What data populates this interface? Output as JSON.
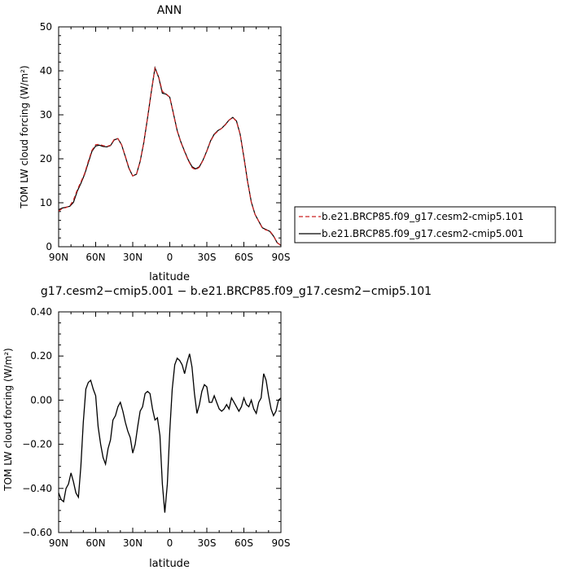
{
  "chart_data": [
    {
      "type": "line",
      "title": "ANN",
      "xlabel": "",
      "ylabel": "TOM LW cloud forcing (W/m²)",
      "x_ticks": [
        "90N",
        "60N",
        "30N",
        "0",
        "30S",
        "60S",
        "90S"
      ],
      "y_ticks": [
        "0",
        "10",
        "20",
        "30",
        "40",
        "50"
      ],
      "xlim": [
        90,
        -90
      ],
      "ylim": [
        0,
        50
      ],
      "legend_position": "right",
      "series": [
        {
          "name": "b.e21.BRCP85.f09_g17.cesm2-cmip5.101",
          "color": "#cc2222",
          "dash": "dashed",
          "x": [
            90,
            87,
            84,
            81,
            78,
            75,
            72,
            69,
            66,
            63,
            60,
            57,
            54,
            51,
            48,
            45,
            42,
            39,
            36,
            33,
            30,
            27,
            24,
            21,
            18,
            15,
            12,
            9,
            6,
            3,
            0,
            -3,
            -6,
            -9,
            -12,
            -15,
            -18,
            -21,
            -24,
            -27,
            -30,
            -33,
            -36,
            -39,
            -42,
            -45,
            -48,
            -51,
            -54,
            -57,
            -60,
            -63,
            -66,
            -69,
            -72,
            -75,
            -78,
            -81,
            -84,
            -87,
            -90
          ],
          "values": [
            8.1,
            8.7,
            8.9,
            9.3,
            10.6,
            12.9,
            14.7,
            16.6,
            19.4,
            21.9,
            23.2,
            23.3,
            23.0,
            22.8,
            23.1,
            24.4,
            24.6,
            23.2,
            20.6,
            17.9,
            16.1,
            16.5,
            19.4,
            23.8,
            29.4,
            35.2,
            40.6,
            38.6,
            35.3,
            34.8,
            34.0,
            30.1,
            26.3,
            23.7,
            21.6,
            19.6,
            18.0,
            17.5,
            18.1,
            19.7,
            21.7,
            24.0,
            25.5,
            26.3,
            26.9,
            27.7,
            28.8,
            29.4,
            28.5,
            25.6,
            20.3,
            14.8,
            10.1,
            7.4,
            5.8,
            4.2,
            3.8,
            3.6,
            2.5,
            0.9,
            0.3
          ]
        },
        {
          "name": "b.e21.BRCP85.f09_g17.cesm2-cmip5.001",
          "color": "#000000",
          "dash": "solid",
          "x": [
            90,
            87,
            84,
            81,
            78,
            75,
            72,
            69,
            66,
            63,
            60,
            57,
            54,
            51,
            48,
            45,
            42,
            39,
            36,
            33,
            30,
            27,
            24,
            21,
            18,
            15,
            12,
            9,
            6,
            3,
            0,
            -3,
            -6,
            -9,
            -12,
            -15,
            -18,
            -21,
            -24,
            -27,
            -30,
            -33,
            -36,
            -39,
            -42,
            -45,
            -48,
            -51,
            -54,
            -57,
            -60,
            -63,
            -66,
            -69,
            -72,
            -75,
            -78,
            -81,
            -84,
            -87,
            -90
          ],
          "values": [
            8.4,
            8.8,
            9.0,
            9.2,
            10.1,
            12.6,
            14.4,
            16.4,
            19.1,
            21.7,
            22.9,
            23.1,
            22.8,
            22.7,
            23.0,
            24.3,
            24.6,
            23.2,
            20.5,
            17.8,
            16.1,
            16.5,
            19.4,
            23.8,
            29.3,
            35.2,
            40.7,
            38.5,
            34.9,
            34.7,
            34.0,
            30.2,
            26.4,
            23.8,
            21.7,
            19.7,
            18.2,
            17.7,
            18.2,
            19.8,
            21.8,
            24.1,
            25.6,
            26.4,
            26.9,
            27.8,
            28.8,
            29.4,
            28.6,
            25.6,
            20.4,
            14.9,
            10.2,
            7.4,
            5.8,
            4.3,
            3.9,
            3.5,
            2.4,
            0.9,
            0.3
          ]
        }
      ]
    },
    {
      "type": "line",
      "title": "g17.cesm2−cmip5.001 − b.e21.BRCP85.f09_g17.cesm2−cmip5.101",
      "xlabel": "latitude",
      "ylabel": "TOM LW cloud forcing (W/m²)",
      "x_ticks": [
        "90N",
        "60N",
        "30N",
        "0",
        "30S",
        "60S",
        "90S"
      ],
      "y_ticks": [
        "−0.60",
        "−0.40",
        "−0.20",
        "0.00",
        "0.20",
        "0.40"
      ],
      "xlim": [
        90,
        -90
      ],
      "ylim": [
        -0.6,
        0.4
      ],
      "series": [
        {
          "color": "#000000",
          "dash": "solid",
          "x": [
            90,
            88,
            86,
            84,
            82,
            80,
            78,
            76,
            74,
            72,
            70,
            68,
            66,
            64,
            62,
            60,
            58,
            56,
            54,
            52,
            50,
            48,
            46,
            44,
            42,
            40,
            38,
            36,
            34,
            32,
            30,
            28,
            26,
            24,
            22,
            20,
            18,
            16,
            14,
            12,
            10,
            8,
            6,
            4,
            2,
            0,
            -2,
            -4,
            -6,
            -8,
            -10,
            -12,
            -14,
            -16,
            -18,
            -20,
            -22,
            -24,
            -26,
            -28,
            -30,
            -32,
            -34,
            -36,
            -38,
            -40,
            -42,
            -44,
            -46,
            -48,
            -50,
            -52,
            -54,
            -56,
            -58,
            -60,
            -62,
            -64,
            -66,
            -68,
            -70,
            -72,
            -74,
            -76,
            -78,
            -80,
            -82,
            -84,
            -86,
            -88,
            -90
          ],
          "values": [
            -0.42,
            -0.45,
            -0.46,
            -0.4,
            -0.38,
            -0.33,
            -0.37,
            -0.42,
            -0.44,
            -0.3,
            -0.1,
            0.05,
            0.08,
            0.09,
            0.05,
            0.02,
            -0.12,
            -0.2,
            -0.26,
            -0.29,
            -0.22,
            -0.18,
            -0.09,
            -0.07,
            -0.03,
            -0.01,
            -0.05,
            -0.1,
            -0.14,
            -0.17,
            -0.24,
            -0.2,
            -0.12,
            -0.05,
            -0.03,
            0.03,
            0.04,
            0.03,
            -0.04,
            -0.09,
            -0.08,
            -0.16,
            -0.38,
            -0.51,
            -0.38,
            -0.14,
            0.05,
            0.16,
            0.19,
            0.18,
            0.16,
            0.12,
            0.17,
            0.21,
            0.15,
            0.03,
            -0.06,
            -0.02,
            0.04,
            0.07,
            0.06,
            -0.01,
            -0.01,
            0.02,
            -0.01,
            -0.04,
            -0.05,
            -0.04,
            -0.02,
            -0.04,
            0.01,
            -0.01,
            -0.03,
            -0.05,
            -0.03,
            0.01,
            -0.02,
            -0.03,
            0.0,
            -0.04,
            -0.06,
            -0.01,
            0.01,
            0.12,
            0.09,
            0.02,
            -0.04,
            -0.07,
            -0.05,
            0.0,
            0.01
          ]
        }
      ]
    }
  ]
}
